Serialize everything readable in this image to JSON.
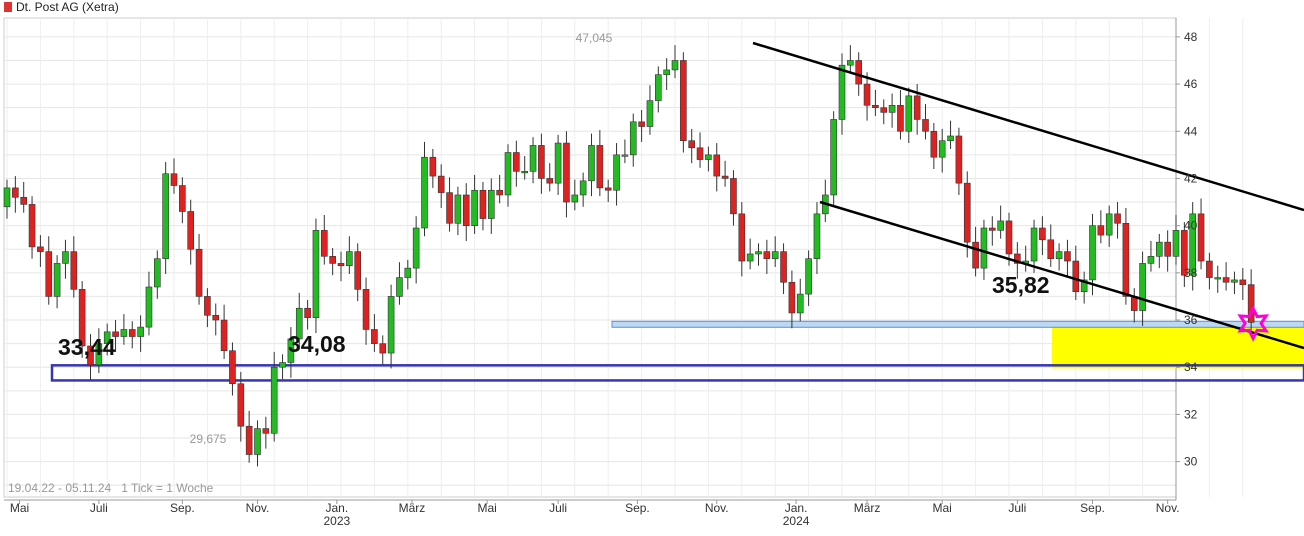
{
  "chart_data": {
    "type": "candlestick",
    "title": "Dt. Post AG (Xetra)",
    "title_swatch_color": "#dd3333",
    "footer": "19.04.22 - 05.11.24   1 Tick = 1 Woche",
    "ylim": [
      28.5,
      48.8
    ],
    "y_ticks": [
      30,
      32,
      34,
      36,
      38,
      40,
      42,
      44,
      46,
      48
    ],
    "x_ticks": [
      {
        "label": "Mai",
        "year": "",
        "week": 1.5
      },
      {
        "label": "Juli",
        "year": "",
        "week": 11
      },
      {
        "label": "Sep.",
        "year": "",
        "week": 21
      },
      {
        "label": "Nov.",
        "year": "",
        "week": 30
      },
      {
        "label": "Jan.",
        "year": "2023",
        "week": 39.5
      },
      {
        "label": "März",
        "year": "",
        "week": 48.5
      },
      {
        "label": "Mai",
        "year": "",
        "week": 57.5
      },
      {
        "label": "Juli",
        "year": "",
        "week": 66
      },
      {
        "label": "Sep.",
        "year": "",
        "week": 75.5
      },
      {
        "label": "Nov.",
        "year": "",
        "week": 85
      },
      {
        "label": "Jan.",
        "year": "2024",
        "week": 94.5
      },
      {
        "label": "März",
        "year": "",
        "week": 103
      },
      {
        "label": "Mai",
        "year": "",
        "week": 112
      },
      {
        "label": "Juli",
        "year": "",
        "week": 121
      },
      {
        "label": "Sep.",
        "year": "",
        "week": 130
      },
      {
        "label": "Nov.",
        "year": "",
        "week": 139
      }
    ],
    "up_color": "#22bb22",
    "down_color": "#dd2222",
    "closes": [
      41.6,
      41.2,
      40.9,
      39.1,
      38.9,
      37.0,
      38.4,
      38.9,
      37.3,
      34.9,
      34.1,
      35.0,
      35.5,
      35.3,
      35.6,
      35.3,
      35.7,
      37.4,
      38.6,
      42.2,
      41.7,
      40.6,
      39.0,
      37.0,
      36.2,
      36.0,
      34.7,
      33.3,
      31.5,
      30.3,
      31.4,
      31.2,
      34.0,
      34.2,
      35.2,
      36.5,
      36.1,
      39.8,
      38.7,
      38.4,
      38.3,
      38.9,
      37.3,
      35.6,
      35.0,
      34.6,
      37.0,
      37.8,
      38.2,
      39.9,
      42.9,
      42.1,
      41.4,
      40.1,
      41.3,
      40.0,
      41.5,
      40.3,
      41.5,
      41.3,
      43.1,
      42.3,
      42.3,
      43.4,
      42.0,
      41.8,
      43.5,
      41.0,
      41.3,
      41.9,
      43.4,
      41.6,
      41.5,
      43.0,
      43.0,
      44.4,
      44.2,
      45.3,
      46.4,
      46.6,
      47.0,
      43.6,
      43.3,
      42.8,
      43.0,
      42.1,
      42.0,
      40.5,
      38.5,
      38.8,
      38.9,
      38.6,
      38.9,
      37.6,
      36.3,
      37.1,
      38.6,
      40.5,
      41.3,
      44.5,
      46.8,
      47.0,
      46.0,
      45.1,
      45.0,
      44.8,
      45.1,
      44.0,
      45.5,
      44.5,
      44.0,
      42.9,
      43.6,
      43.8,
      41.8,
      39.3,
      38.2,
      39.9,
      39.8,
      40.2,
      38.8,
      38.4,
      38.5,
      39.9,
      39.4,
      38.6,
      38.9,
      38.5,
      37.2,
      37.7,
      40.0,
      39.6,
      40.5,
      40.1,
      37.0,
      36.4,
      38.4,
      38.7,
      39.3,
      38.7,
      39.8,
      37.9,
      40.5,
      38.5,
      37.8,
      37.8,
      37.6,
      37.7,
      37.5,
      35.9
    ]
  },
  "annotations": {
    "high_label": "47,045",
    "low_label": "29,675",
    "level_1": "33,44",
    "level_2": "34,08",
    "level_3": "35,82"
  }
}
